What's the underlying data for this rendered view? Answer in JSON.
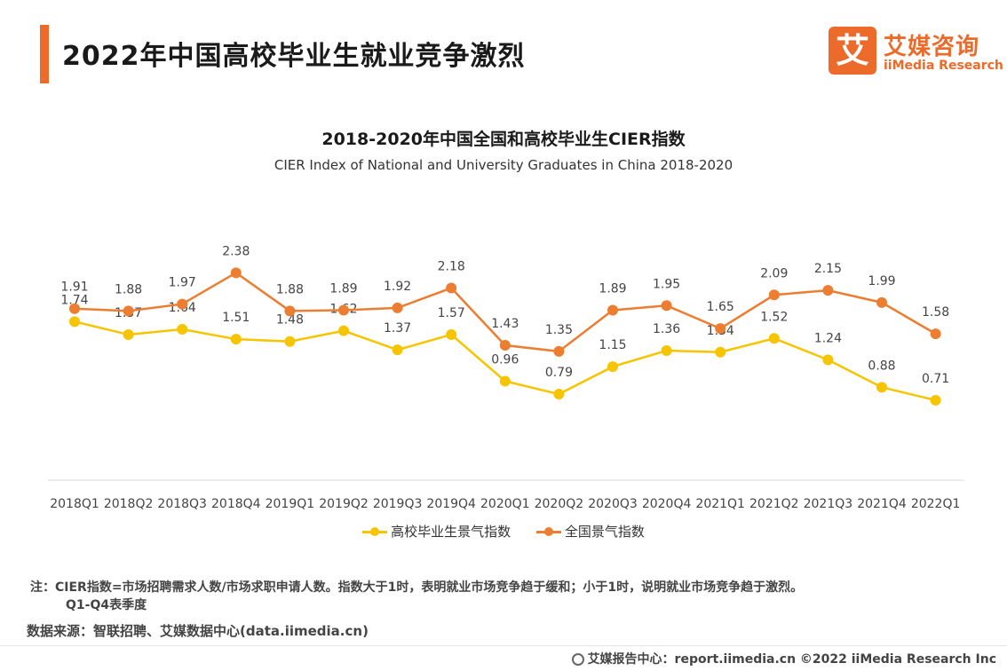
{
  "header": {
    "title": "2022年中国高校毕业生就业竞争激烈",
    "logo_mark": "艾",
    "logo_cn": "艾媒咨询",
    "logo_en": "iiMedia Research"
  },
  "colors": {
    "accent": "#ec6a2a",
    "national": "#ec7d31",
    "university": "#f7c400"
  },
  "chart_data": {
    "type": "line",
    "title": "2018-2020年中国全国和高校毕业生CIER指数",
    "subtitle": "CIER Index of National and University Graduates in China 2018-2020",
    "categories": [
      "2018Q1",
      "2018Q2",
      "2018Q3",
      "2018Q4",
      "2019Q1",
      "2019Q2",
      "2019Q3",
      "2019Q4",
      "2020Q1",
      "2020Q2",
      "2020Q3",
      "2020Q4",
      "2021Q1",
      "2021Q2",
      "2021Q3",
      "2021Q4",
      "2022Q1"
    ],
    "series": [
      {
        "name": "高校毕业生景气指数",
        "color": "#f7c400",
        "values": [
          1.74,
          1.57,
          1.64,
          1.51,
          1.48,
          1.62,
          1.37,
          1.57,
          0.96,
          0.79,
          1.15,
          1.36,
          1.34,
          1.52,
          1.24,
          0.88,
          0.71
        ]
      },
      {
        "name": "全国景气指数",
        "color": "#ec7d31",
        "values": [
          1.91,
          1.88,
          1.97,
          2.38,
          1.88,
          1.89,
          1.92,
          2.18,
          1.43,
          1.35,
          1.89,
          1.95,
          1.65,
          2.09,
          2.15,
          1.99,
          1.58
        ]
      }
    ],
    "grid": false,
    "legend": "bottom"
  },
  "notes": {
    "line1": "注：CIER指数=市场招聘需求人数/市场求职申请人数。指数大于1时，表明就业市场竞争趋于缓和；小于1时，说明就业市场竞争趋于激烈。",
    "line2": "Q1-Q4表季度"
  },
  "source": "数据来源：智联招聘、艾媒数据中心(data.iimedia.cn)",
  "footer": "艾媒报告中心：report.iimedia.cn  ©2022  iiMedia Research  Inc"
}
